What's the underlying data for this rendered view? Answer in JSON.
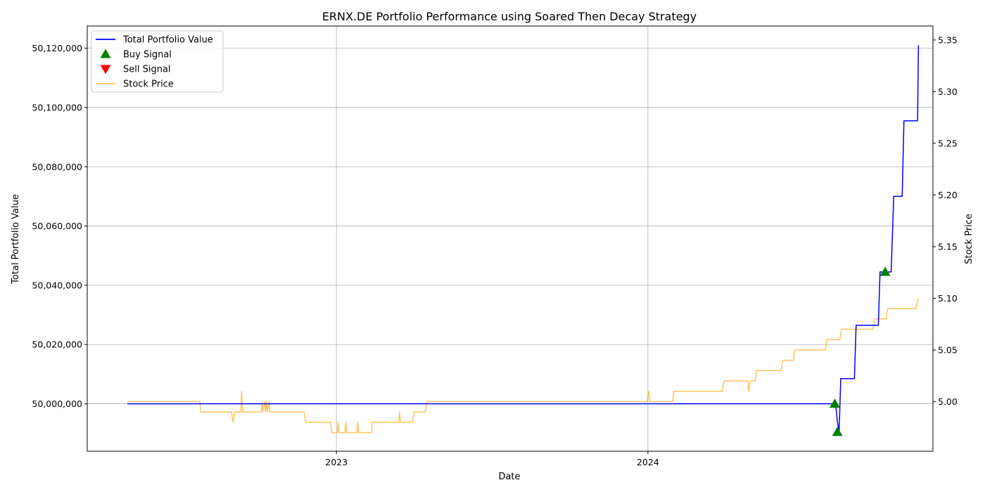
{
  "chart_data": {
    "type": "line",
    "title": "ERNX.DE Portfolio Performance using Soared Then Decay Strategy",
    "xlabel": "Date",
    "ylabel": "Total Portfolio Value",
    "y2label": "Stock Price",
    "xlim": [
      "2022-03-15",
      "2024-11-30"
    ],
    "x_ticks": [
      {
        "date": "2023-01-01",
        "label": "2023"
      },
      {
        "date": "2024-01-01",
        "label": "2024"
      }
    ],
    "ylim": [
      49984000,
      50127500
    ],
    "y_ticks": [
      50000000,
      50020000,
      50040000,
      50060000,
      50080000,
      50100000,
      50120000
    ],
    "y_tick_labels": [
      "50,000,000",
      "50,020,000",
      "50,040,000",
      "50,060,000",
      "50,080,000",
      "50,100,000",
      "50,120,000"
    ],
    "y2lim": [
      4.952,
      5.3635
    ],
    "y2_ticks": [
      5.0,
      5.05,
      5.1,
      5.15,
      5.2,
      5.25,
      5.3,
      5.35
    ],
    "y2_tick_labels": [
      "5.00",
      "5.05",
      "5.10",
      "5.15",
      "5.20",
      "5.25",
      "5.30",
      "5.35"
    ],
    "grid": true,
    "legend_placement": "upper-left",
    "series": [
      {
        "name": "Total Portfolio Value",
        "axis": "left",
        "color": "#0000ff",
        "style": "line",
        "points": [
          [
            "2022-05-01",
            50000000
          ],
          [
            "2024-08-08",
            50000000
          ],
          [
            "2024-08-10",
            49994000
          ],
          [
            "2024-08-12",
            49990500
          ],
          [
            "2024-08-14",
            50008500
          ],
          [
            "2024-08-30",
            50008500
          ],
          [
            "2024-09-01",
            50026500
          ],
          [
            "2024-09-27",
            50026500
          ],
          [
            "2024-09-29",
            50044500
          ],
          [
            "2024-10-12",
            50044500
          ],
          [
            "2024-10-14",
            50061000
          ],
          [
            "2024-10-15",
            50070000
          ],
          [
            "2024-10-25",
            50070000
          ],
          [
            "2024-10-27",
            50095500
          ],
          [
            "2024-11-12",
            50095500
          ],
          [
            "2024-11-13",
            50121000
          ]
        ]
      },
      {
        "name": "Buy Signal",
        "axis": "left",
        "color": "#008000",
        "style": "marker-up",
        "points": [
          [
            "2024-08-07",
            50000000
          ],
          [
            "2024-08-10",
            49990500
          ],
          [
            "2024-10-05",
            50044500
          ]
        ]
      },
      {
        "name": "Sell Signal",
        "axis": "left",
        "color": "#ff0000",
        "style": "marker-down",
        "points": []
      },
      {
        "name": "Stock Price",
        "axis": "right",
        "color": "#ffa500",
        "style": "line",
        "points": [
          [
            "2022-05-01",
            5.0
          ],
          [
            "2022-07-25",
            5.0
          ],
          [
            "2022-07-26",
            4.99
          ],
          [
            "2022-08-31",
            4.99
          ],
          [
            "2022-09-02",
            4.98
          ],
          [
            "2022-09-04",
            4.99
          ],
          [
            "2022-09-11",
            4.99
          ],
          [
            "2022-09-12",
            5.01
          ],
          [
            "2022-09-13",
            4.99
          ],
          [
            "2022-10-05",
            4.99
          ],
          [
            "2022-10-06",
            5.0
          ],
          [
            "2022-10-07",
            4.99
          ],
          [
            "2022-10-09",
            5.0
          ],
          [
            "2022-10-10",
            4.99
          ],
          [
            "2022-10-11",
            5.0
          ],
          [
            "2022-10-12",
            4.99
          ],
          [
            "2022-10-14",
            5.0
          ],
          [
            "2022-10-15",
            4.99
          ],
          [
            "2022-11-24",
            4.99
          ],
          [
            "2022-11-26",
            4.98
          ],
          [
            "2022-12-25",
            4.98
          ],
          [
            "2022-12-27",
            4.97
          ],
          [
            "2023-01-02",
            4.97
          ],
          [
            "2023-01-03",
            4.98
          ],
          [
            "2023-01-04",
            4.97
          ],
          [
            "2023-01-11",
            4.97
          ],
          [
            "2023-01-12",
            4.98
          ],
          [
            "2023-01-13",
            4.97
          ],
          [
            "2023-01-25",
            4.97
          ],
          [
            "2023-01-26",
            4.98
          ],
          [
            "2023-01-27",
            4.97
          ],
          [
            "2023-02-11",
            4.97
          ],
          [
            "2023-02-12",
            4.98
          ],
          [
            "2023-03-15",
            4.98
          ],
          [
            "2023-03-16",
            4.99
          ],
          [
            "2023-03-17",
            4.98
          ],
          [
            "2023-03-31",
            4.98
          ],
          [
            "2023-04-02",
            4.99
          ],
          [
            "2023-04-15",
            4.99
          ],
          [
            "2023-04-17",
            5.0
          ],
          [
            "2023-12-31",
            5.0
          ],
          [
            "2024-01-02",
            5.01
          ],
          [
            "2024-01-03",
            5.0
          ],
          [
            "2024-01-30",
            5.0
          ],
          [
            "2024-01-31",
            5.01
          ],
          [
            "2024-03-28",
            5.01
          ],
          [
            "2024-03-30",
            5.02
          ],
          [
            "2024-04-27",
            5.02
          ],
          [
            "2024-04-28",
            5.01
          ],
          [
            "2024-04-30",
            5.02
          ],
          [
            "2024-05-06",
            5.02
          ],
          [
            "2024-05-07",
            5.03
          ],
          [
            "2024-06-05",
            5.03
          ],
          [
            "2024-06-07",
            5.04
          ],
          [
            "2024-06-20",
            5.04
          ],
          [
            "2024-06-21",
            5.05
          ],
          [
            "2024-07-27",
            5.05
          ],
          [
            "2024-07-29",
            5.06
          ],
          [
            "2024-08-13",
            5.06
          ],
          [
            "2024-08-15",
            5.07
          ],
          [
            "2024-09-21",
            5.07
          ],
          [
            "2024-09-23",
            5.08
          ],
          [
            "2024-10-06",
            5.08
          ],
          [
            "2024-10-08",
            5.09
          ],
          [
            "2024-11-10",
            5.09
          ],
          [
            "2024-11-13",
            5.1
          ]
        ]
      }
    ]
  }
}
